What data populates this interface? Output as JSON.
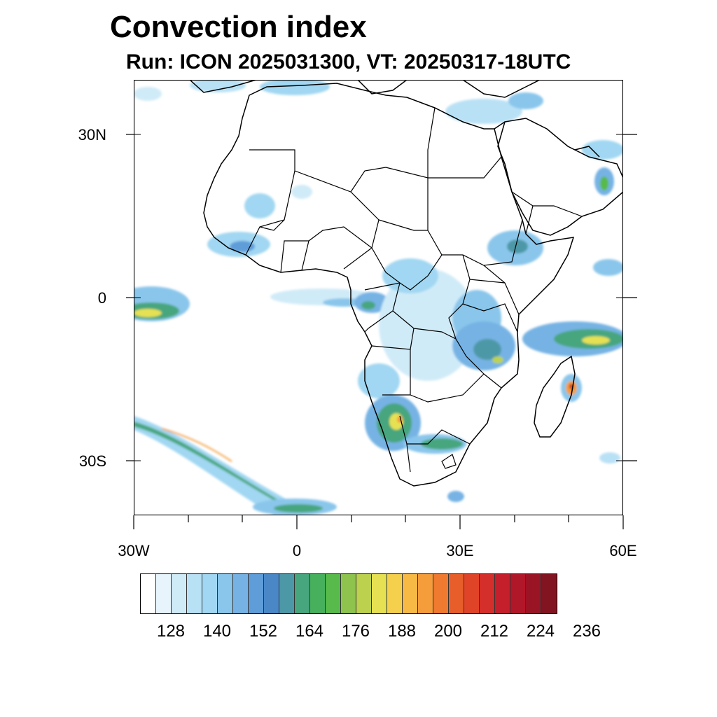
{
  "title": "Convection index",
  "subtitle": "Run: ICON 2025031300,  VT: 20250317-18UTC",
  "lat_labels": [
    "30N",
    "0",
    "30S"
  ],
  "lon_labels": [
    "30W",
    "0",
    "30E",
    "60E"
  ],
  "colorbar": {
    "colors": [
      "#ffffff",
      "#e8f4fb",
      "#d0ebf8",
      "#b9e1f5",
      "#a1d7f2",
      "#8ac6eb",
      "#76b3e4",
      "#5f9dd9",
      "#4a87c6",
      "#4d98a7",
      "#47a67e",
      "#46b05d",
      "#58ba4a",
      "#8ec34e",
      "#bcd24f",
      "#e6e152",
      "#f5d04c",
      "#f6ba45",
      "#f59c3b",
      "#ef7a30",
      "#e85e2a",
      "#df4428",
      "#d42f2b",
      "#c41f2b",
      "#b0182a",
      "#991525",
      "#821320"
    ],
    "labels": [
      "128",
      "140",
      "152",
      "164",
      "176",
      "188",
      "200",
      "212",
      "224",
      "236"
    ]
  }
}
